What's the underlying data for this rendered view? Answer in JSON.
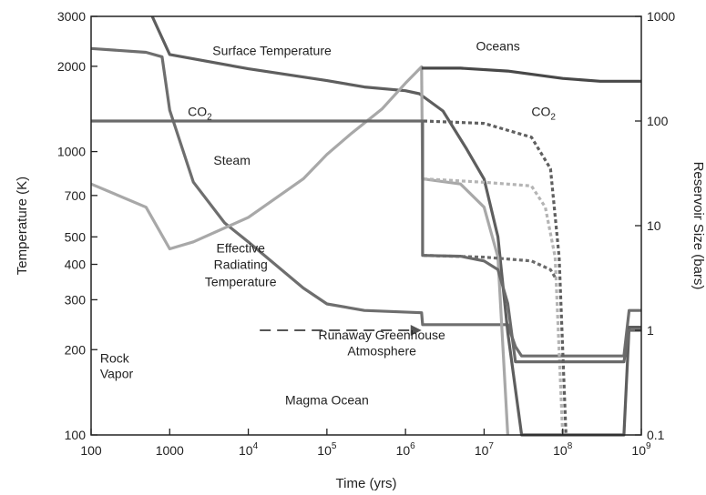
{
  "chart_data": {
    "type": "line",
    "xlabel": "Time (yrs)",
    "ylabel_left": "Temperature (K)",
    "ylabel_right": "Reservoir Size (bars)",
    "x_scale": "log",
    "y_left_scale": "log",
    "y_right_scale": "log",
    "xlim": [
      100,
      1000000000
    ],
    "ylim_left": [
      100,
      3000
    ],
    "ylim_right": [
      0.1,
      1000
    ],
    "grid": false,
    "legend": "none",
    "x_ticks": [
      {
        "value": 100,
        "base": "100",
        "exp": ""
      },
      {
        "value": 1000,
        "base": "1000",
        "exp": ""
      },
      {
        "value": 10000,
        "base": "10",
        "exp": "4"
      },
      {
        "value": 100000,
        "base": "10",
        "exp": "5"
      },
      {
        "value": 1000000,
        "base": "10",
        "exp": "6"
      },
      {
        "value": 10000000,
        "base": "10",
        "exp": "7"
      },
      {
        "value": 100000000,
        "base": "10",
        "exp": "8"
      },
      {
        "value": 1000000000,
        "base": "10",
        "exp": "9"
      }
    ],
    "y_left_ticks": [
      {
        "value": 100,
        "label": "100"
      },
      {
        "value": 200,
        "label": "200"
      },
      {
        "value": 300,
        "label": "300"
      },
      {
        "value": 400,
        "label": "400"
      },
      {
        "value": 500,
        "label": "500"
      },
      {
        "value": 700,
        "label": "700"
      },
      {
        "value": 1000,
        "label": "1000"
      },
      {
        "value": 2000,
        "label": "2000"
      },
      {
        "value": 3000,
        "label": "3000"
      }
    ],
    "y_right_ticks": [
      {
        "value": 0.1,
        "label": "0.1"
      },
      {
        "value": 1,
        "label": "1"
      },
      {
        "value": 10,
        "label": "10"
      },
      {
        "value": 100,
        "label": "100"
      },
      {
        "value": 1000,
        "label": "1000"
      }
    ],
    "series": [
      {
        "name": "Surface Temperature",
        "axis": "left",
        "color": "#6e6e6e",
        "dash": "solid",
        "points": [
          [
            100,
            2310
          ],
          [
            500,
            2240
          ],
          [
            800,
            2160
          ],
          [
            1000,
            1400
          ],
          [
            2000,
            780
          ],
          [
            5000,
            560
          ],
          [
            10000,
            480
          ],
          [
            50000,
            330
          ],
          [
            100000,
            290
          ],
          [
            300000,
            275
          ],
          [
            1600000,
            270
          ],
          [
            1650000,
            245
          ],
          [
            10000000,
            245
          ],
          [
            20000000,
            245
          ],
          [
            25000000,
            205
          ],
          [
            30000000,
            190
          ],
          [
            600000000,
            190
          ],
          [
            700000000,
            275
          ],
          [
            1000000000,
            275
          ]
        ]
      },
      {
        "name": "Effective Radiating Temperature",
        "axis": "left",
        "color": "#5e5e5e",
        "dash": "solid",
        "points": [
          [
            600,
            3000
          ],
          [
            1000,
            2200
          ],
          [
            10000,
            1960
          ],
          [
            100000,
            1780
          ],
          [
            300000,
            1690
          ],
          [
            1000000,
            1640
          ],
          [
            1500000,
            1600
          ],
          [
            3000000,
            1390
          ],
          [
            6000000,
            1020
          ],
          [
            10000000,
            800
          ],
          [
            15000000,
            500
          ],
          [
            20000000,
            230
          ],
          [
            30000000,
            100
          ],
          [
            600000000,
            100
          ],
          [
            700000000,
            240
          ],
          [
            1000000000,
            240
          ]
        ]
      },
      {
        "name": "Steam",
        "axis": "right",
        "color": "#a8a8a8",
        "dash": "solid",
        "points": [
          [
            100,
            25
          ],
          [
            500,
            15
          ],
          [
            1000,
            6
          ],
          [
            2000,
            7
          ],
          [
            10000,
            12
          ],
          [
            50000,
            28
          ],
          [
            100000,
            48
          ],
          [
            200000,
            75
          ],
          [
            500000,
            130
          ],
          [
            1000000,
            230
          ],
          [
            1600000,
            330
          ],
          [
            1650000,
            28
          ],
          [
            5000000,
            25
          ],
          [
            10000000,
            15
          ],
          [
            15000000,
            5
          ],
          [
            20000000,
            0.1
          ]
        ]
      },
      {
        "name": "Steam atmosphere (dotted)",
        "axis": "right",
        "color": "#b4b4b4",
        "dash": "dotted",
        "points": [
          [
            1700000,
            28
          ],
          [
            10000000,
            26
          ],
          [
            40000000,
            24
          ],
          [
            60000000,
            15
          ],
          [
            80000000,
            5
          ],
          [
            100000000,
            0.1
          ]
        ]
      },
      {
        "name": "CO2",
        "axis": "right",
        "color": "#6a6a6a",
        "dash": "solid",
        "points": [
          [
            100,
            100
          ],
          [
            1000000,
            100
          ],
          [
            1650000,
            100
          ],
          [
            1650000,
            5.2
          ],
          [
            5000000,
            5.1
          ],
          [
            10000000,
            4.6
          ],
          [
            15000000,
            3.8
          ],
          [
            20000000,
            1.8
          ],
          [
            25000000,
            0.5
          ],
          [
            30000000,
            0.5
          ],
          [
            600000000,
            0.5
          ],
          [
            700000000,
            1
          ],
          [
            1000000000,
            1
          ]
        ]
      },
      {
        "name": "CO2 (dotted, atmosphere)",
        "axis": "right",
        "color": "#5f5f5f",
        "dash": "dotted",
        "points": [
          [
            1700000,
            100
          ],
          [
            10000000,
            95
          ],
          [
            40000000,
            70
          ],
          [
            70000000,
            35
          ],
          [
            90000000,
            5
          ],
          [
            110000000,
            0.1
          ]
        ]
      },
      {
        "name": "CO2 lower dotted",
        "axis": "right",
        "color": "#6a6a6a",
        "dash": "dotted",
        "points": [
          [
            1700000,
            5.2
          ],
          [
            10000000,
            5.0
          ],
          [
            40000000,
            4.6
          ],
          [
            70000000,
            3.8
          ],
          [
            80000000,
            3.2
          ]
        ]
      },
      {
        "name": "Oceans",
        "axis": "right",
        "color": "#484848",
        "dash": "solid",
        "points": [
          [
            1600000,
            320
          ],
          [
            5000000,
            320
          ],
          [
            20000000,
            300
          ],
          [
            100000000,
            255
          ],
          [
            300000000,
            240
          ],
          [
            1000000000,
            240
          ]
        ]
      }
    ],
    "annotations": [
      {
        "text": "Surface Temperature",
        "x": 20000,
        "y": 2190,
        "axis": "left",
        "anchor": "middle"
      },
      {
        "text": "CO",
        "sub": "2",
        "x": 1700,
        "y": 1335,
        "axis": "left",
        "anchor": "start"
      },
      {
        "text": "CO",
        "sub": "2",
        "x": 40000000,
        "y": 1335,
        "axis": "left",
        "anchor": "start"
      },
      {
        "text": "Oceans",
        "x": 15000000,
        "y": 2270,
        "axis": "left",
        "anchor": "middle"
      },
      {
        "text": "Steam",
        "x": 6200,
        "y": 900,
        "axis": "left",
        "anchor": "middle",
        "color": "#9a9a9a"
      },
      {
        "text": "Effective",
        "x": 8000,
        "y": 440,
        "axis": "left",
        "anchor": "middle"
      },
      {
        "text": "Radiating",
        "x": 8000,
        "y": 385,
        "axis": "left",
        "anchor": "middle"
      },
      {
        "text": "Temperature",
        "x": 8000,
        "y": 335,
        "axis": "left",
        "anchor": "middle"
      },
      {
        "text": "Runaway Greenhouse",
        "x": 500000,
        "y": 217,
        "axis": "left",
        "anchor": "middle"
      },
      {
        "text": "Atmosphere",
        "x": 500000,
        "y": 191,
        "axis": "left",
        "anchor": "middle"
      },
      {
        "text": "Rock",
        "x": 130,
        "y": 180,
        "axis": "left",
        "anchor": "start"
      },
      {
        "text": "Vapor",
        "x": 130,
        "y": 159,
        "axis": "left",
        "anchor": "start"
      },
      {
        "text": "Magma Ocean",
        "x": 100000,
        "y": 128,
        "axis": "left",
        "anchor": "middle"
      }
    ],
    "arrow": {
      "x1": 14000,
      "x2": 1600000,
      "y": 1,
      "axis": "right",
      "color": "#555555",
      "dash": "dashed"
    }
  }
}
